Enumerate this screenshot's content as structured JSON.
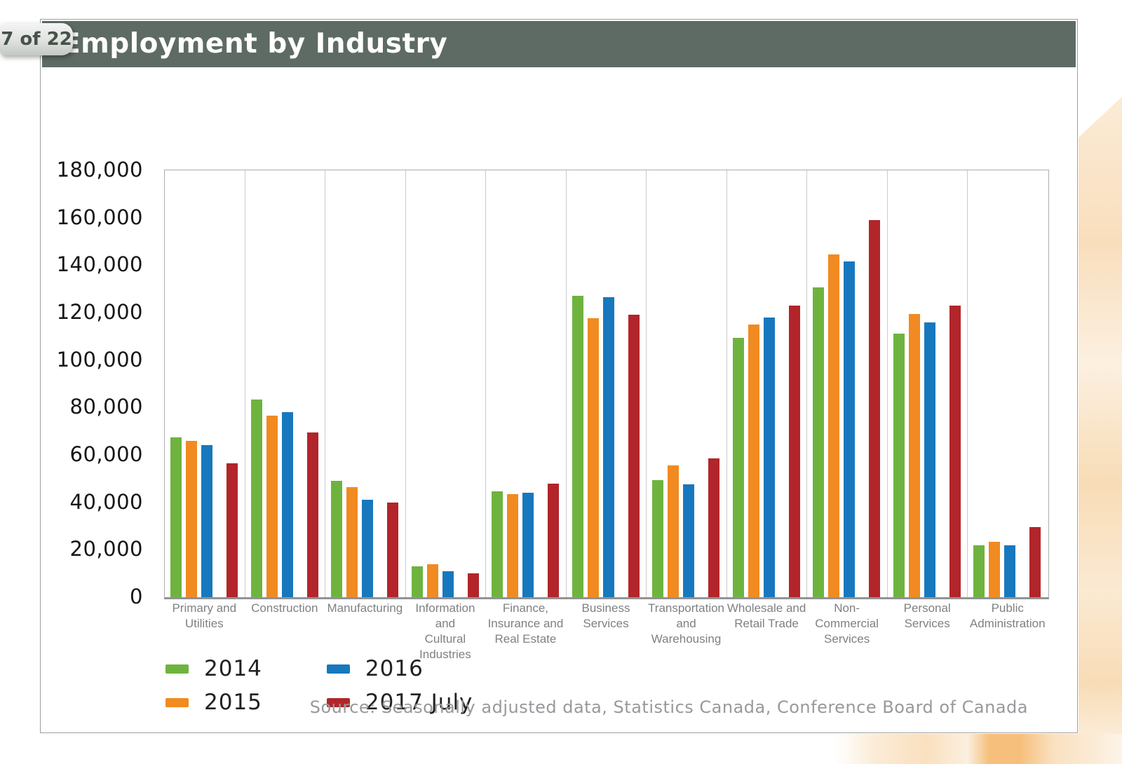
{
  "page_badge": "7 of 22",
  "header": {
    "title": "Employment by Industry",
    "bg_color": "#5E6B64"
  },
  "source": "Source: Seasonally adjusted data, Statistics Canada, Conference Board of Canada",
  "chart_data": {
    "type": "bar",
    "title": "Employment by Industry",
    "categories": [
      "Primary and\nUtilities",
      "Construction",
      "Manufacturing",
      "Information and\nCultural\nIndustries",
      "Finance,\nInsurance and\nReal Estate",
      "Business\nServices",
      "Transportation\nand\nWarehousing",
      "Wholesale and\nRetail Trade",
      "Non-Commercial\nServices",
      "Personal\nServices",
      "Public\nAdministration"
    ],
    "series": [
      {
        "name": "2014",
        "color": "#6FB33F",
        "values": [
          67500,
          83500,
          49000,
          13000,
          44500,
          127000,
          49500,
          109500,
          130500,
          111000,
          22000
        ]
      },
      {
        "name": "2015",
        "color": "#F18A21",
        "values": [
          66000,
          76500,
          46500,
          14000,
          43500,
          117500,
          55500,
          115000,
          144500,
          119500,
          23500
        ]
      },
      {
        "name": "2016",
        "color": "#1778BE",
        "values": [
          64000,
          78000,
          41000,
          11000,
          44000,
          126500,
          47500,
          118000,
          141500,
          116000,
          22000
        ]
      },
      {
        "name": "2017 July",
        "color": "#B2252A",
        "values": [
          56500,
          69500,
          40000,
          10000,
          48000,
          119000,
          58500,
          123000,
          159000,
          123000,
          29500
        ]
      }
    ],
    "ylim": [
      0,
      180000
    ],
    "ytick_step": 20000,
    "ytick_labels": [
      "180,000",
      "160,000",
      "140,000",
      "120,000",
      "100,000",
      "80,000",
      "60,000",
      "40,000",
      "20,000",
      "0"
    ],
    "xlabel": "",
    "ylabel": "",
    "grid": "vertical category separators only, no horizontal gridlines",
    "legend_position": "bottom-left",
    "legend_display_order": [
      "2014",
      "2016",
      "2015",
      "2017 July"
    ],
    "source": "Source: Seasonally adjusted data, Statistics Canada, Conference Board of Canada"
  }
}
